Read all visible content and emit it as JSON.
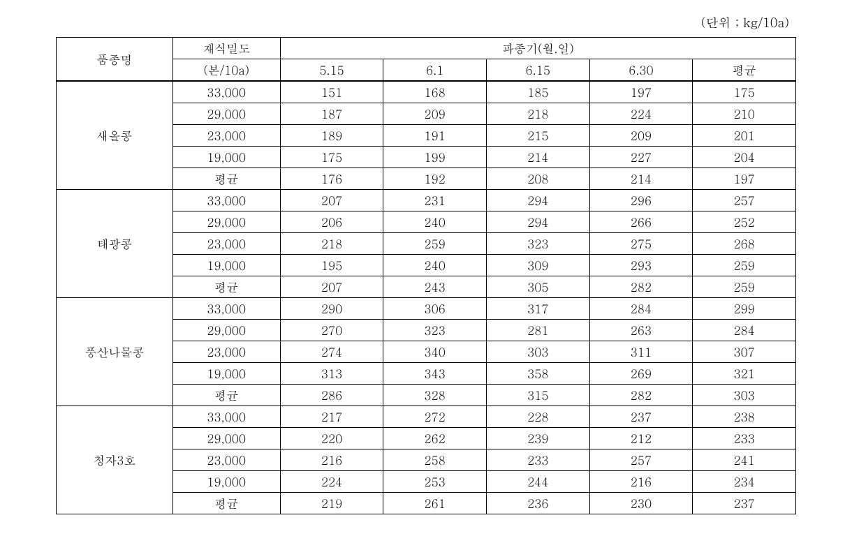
{
  "unit_label": "(단위 ; kg/10a)",
  "headers": {
    "variety": "품종명",
    "density": "재식밀도",
    "density_sub": "(본/10a)",
    "sowing_period": "파종기(월.일)",
    "dates": [
      "5.15",
      "6.1",
      "6.15",
      "6.30"
    ],
    "average": "평균"
  },
  "varieties": [
    {
      "name": "새올콩",
      "rows": [
        {
          "density": "33,000",
          "values": [
            "151",
            "168",
            "185",
            "197",
            "175"
          ]
        },
        {
          "density": "29,000",
          "values": [
            "187",
            "209",
            "218",
            "224",
            "210"
          ]
        },
        {
          "density": "23,000",
          "values": [
            "189",
            "191",
            "215",
            "209",
            "201"
          ]
        },
        {
          "density": "19,000",
          "values": [
            "175",
            "199",
            "214",
            "227",
            "204"
          ]
        },
        {
          "density": "평균",
          "values": [
            "176",
            "192",
            "208",
            "214",
            "197"
          ]
        }
      ]
    },
    {
      "name": "태광콩",
      "rows": [
        {
          "density": "33,000",
          "values": [
            "207",
            "231",
            "294",
            "296",
            "257"
          ]
        },
        {
          "density": "29,000",
          "values": [
            "206",
            "240",
            "294",
            "266",
            "252"
          ]
        },
        {
          "density": "23,000",
          "values": [
            "218",
            "259",
            "323",
            "275",
            "268"
          ]
        },
        {
          "density": "19,000",
          "values": [
            "195",
            "240",
            "309",
            "293",
            "259"
          ]
        },
        {
          "density": "평균",
          "values": [
            "207",
            "243",
            "305",
            "282",
            "259"
          ]
        }
      ]
    },
    {
      "name": "풍산나물콩",
      "rows": [
        {
          "density": "33,000",
          "values": [
            "290",
            "306",
            "317",
            "284",
            "299"
          ]
        },
        {
          "density": "29,000",
          "values": [
            "270",
            "323",
            "281",
            "263",
            "284"
          ]
        },
        {
          "density": "23,000",
          "values": [
            "274",
            "340",
            "303",
            "311",
            "307"
          ]
        },
        {
          "density": "19,000",
          "values": [
            "313",
            "343",
            "358",
            "269",
            "321"
          ]
        },
        {
          "density": "평균",
          "values": [
            "286",
            "328",
            "315",
            "282",
            "303"
          ]
        }
      ]
    },
    {
      "name": "청자3호",
      "rows": [
        {
          "density": "33,000",
          "values": [
            "217",
            "272",
            "228",
            "237",
            "238"
          ]
        },
        {
          "density": "29,000",
          "values": [
            "220",
            "262",
            "239",
            "212",
            "233"
          ]
        },
        {
          "density": "23,000",
          "values": [
            "216",
            "258",
            "233",
            "257",
            "241"
          ]
        },
        {
          "density": "19,000",
          "values": [
            "224",
            "253",
            "244",
            "216",
            "234"
          ]
        },
        {
          "density": "평균",
          "values": [
            "219",
            "261",
            "236",
            "230",
            "237"
          ]
        }
      ]
    }
  ],
  "colors": {
    "background": "#ffffff",
    "text": "#000000",
    "border": "#000000"
  },
  "typography": {
    "font_family": "Batang",
    "body_fontsize": 17,
    "unit_fontsize": 18
  }
}
